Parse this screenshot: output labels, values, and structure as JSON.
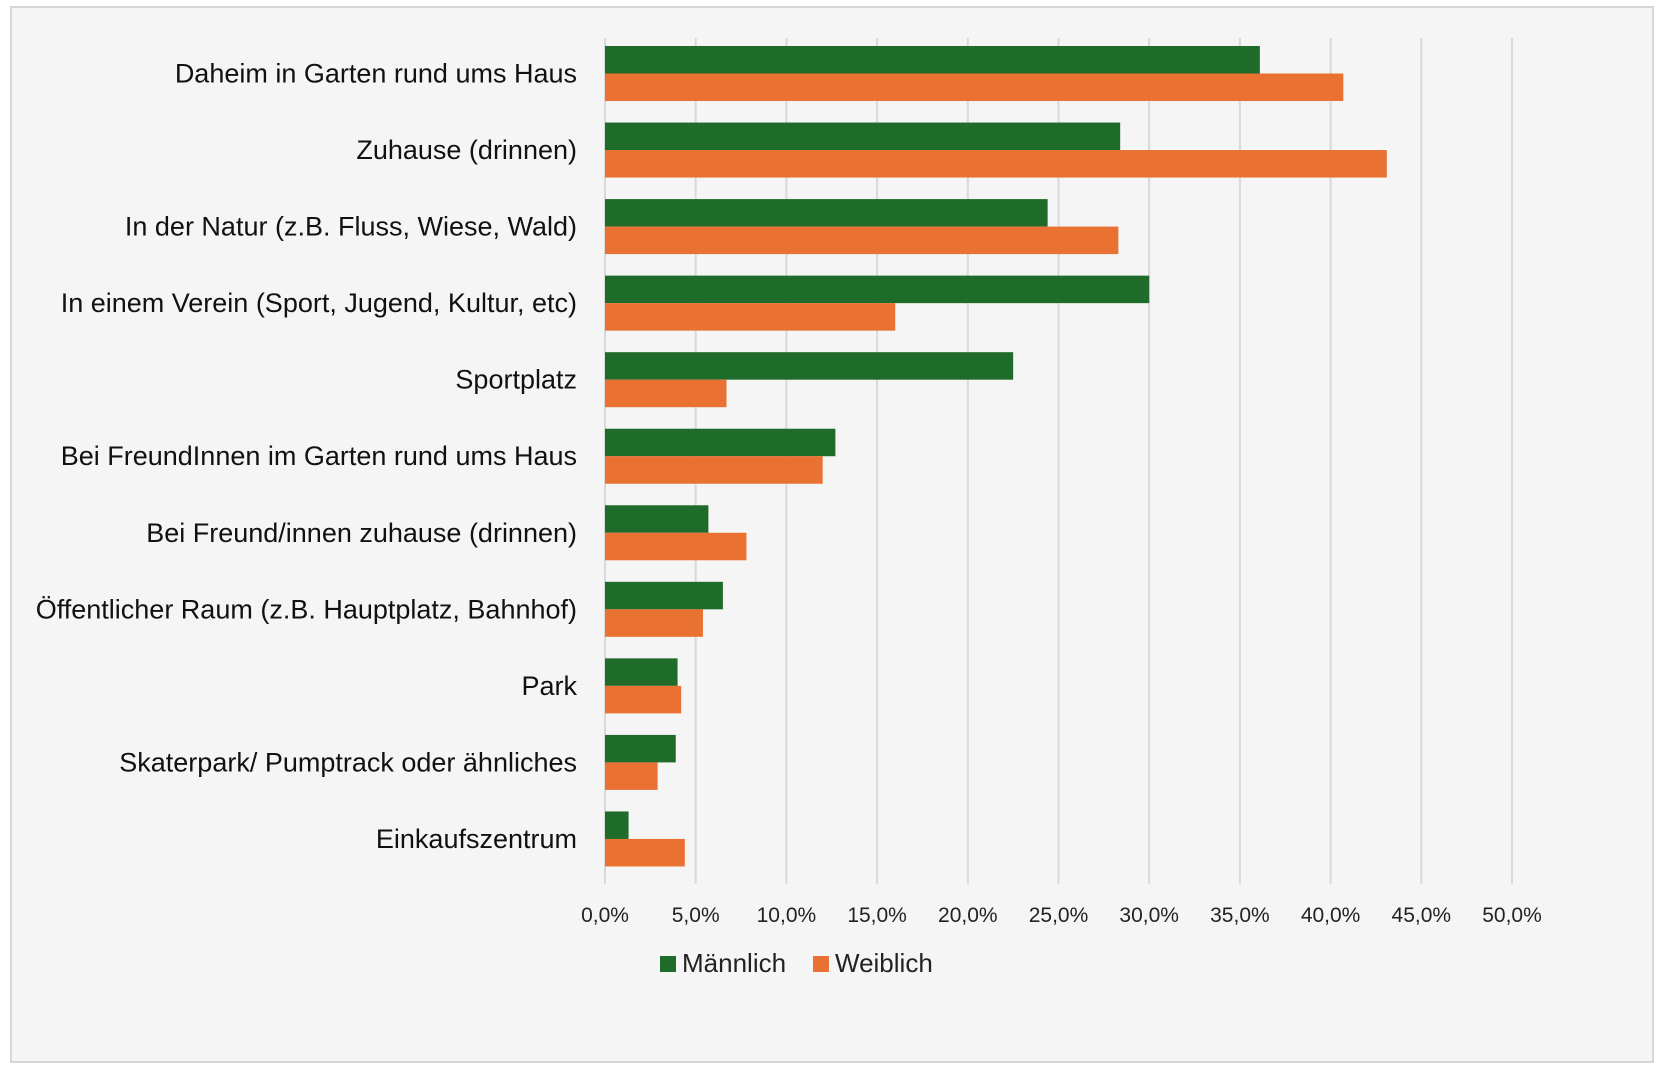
{
  "chart_data": {
    "type": "bar",
    "orientation": "horizontal",
    "categories": [
      "Daheim in Garten rund ums Haus",
      "Zuhause (drinnen)",
      "In der Natur (z.B. Fluss, Wiese, Wald)",
      "In einem Verein (Sport, Jugend, Kultur, etc)",
      "Sportplatz",
      "Bei FreundInnen im Garten rund ums Haus",
      "Bei Freund/innen zuhause (drinnen)",
      "Öffentlicher Raum (z.B. Hauptplatz, Bahnhof)",
      "Park",
      "Skaterpark/ Pumptrack oder ähnliches",
      "Einkaufszentrum"
    ],
    "series": [
      {
        "name": "Männlich",
        "color": "#1e6b2a",
        "values": [
          36.1,
          28.4,
          24.4,
          30.0,
          22.5,
          12.7,
          5.7,
          6.5,
          4.0,
          3.9,
          1.3
        ]
      },
      {
        "name": "Weiblich",
        "color": "#e97132",
        "values": [
          40.7,
          43.1,
          28.3,
          16.0,
          6.7,
          12.0,
          7.8,
          5.4,
          4.2,
          2.9,
          4.4
        ]
      }
    ],
    "title": "",
    "xlabel": "",
    "ylabel": "",
    "xlim": [
      0,
      50
    ],
    "x_ticks": [
      "0,0%",
      "5,0%",
      "10,0%",
      "15,0%",
      "20,0%",
      "25,0%",
      "30,0%",
      "35,0%",
      "40,0%",
      "45,0%",
      "50,0%"
    ],
    "x_tick_values": [
      0,
      5,
      10,
      15,
      20,
      25,
      30,
      35,
      40,
      45,
      50
    ],
    "grid": "vertical",
    "legend_position": "bottom"
  }
}
